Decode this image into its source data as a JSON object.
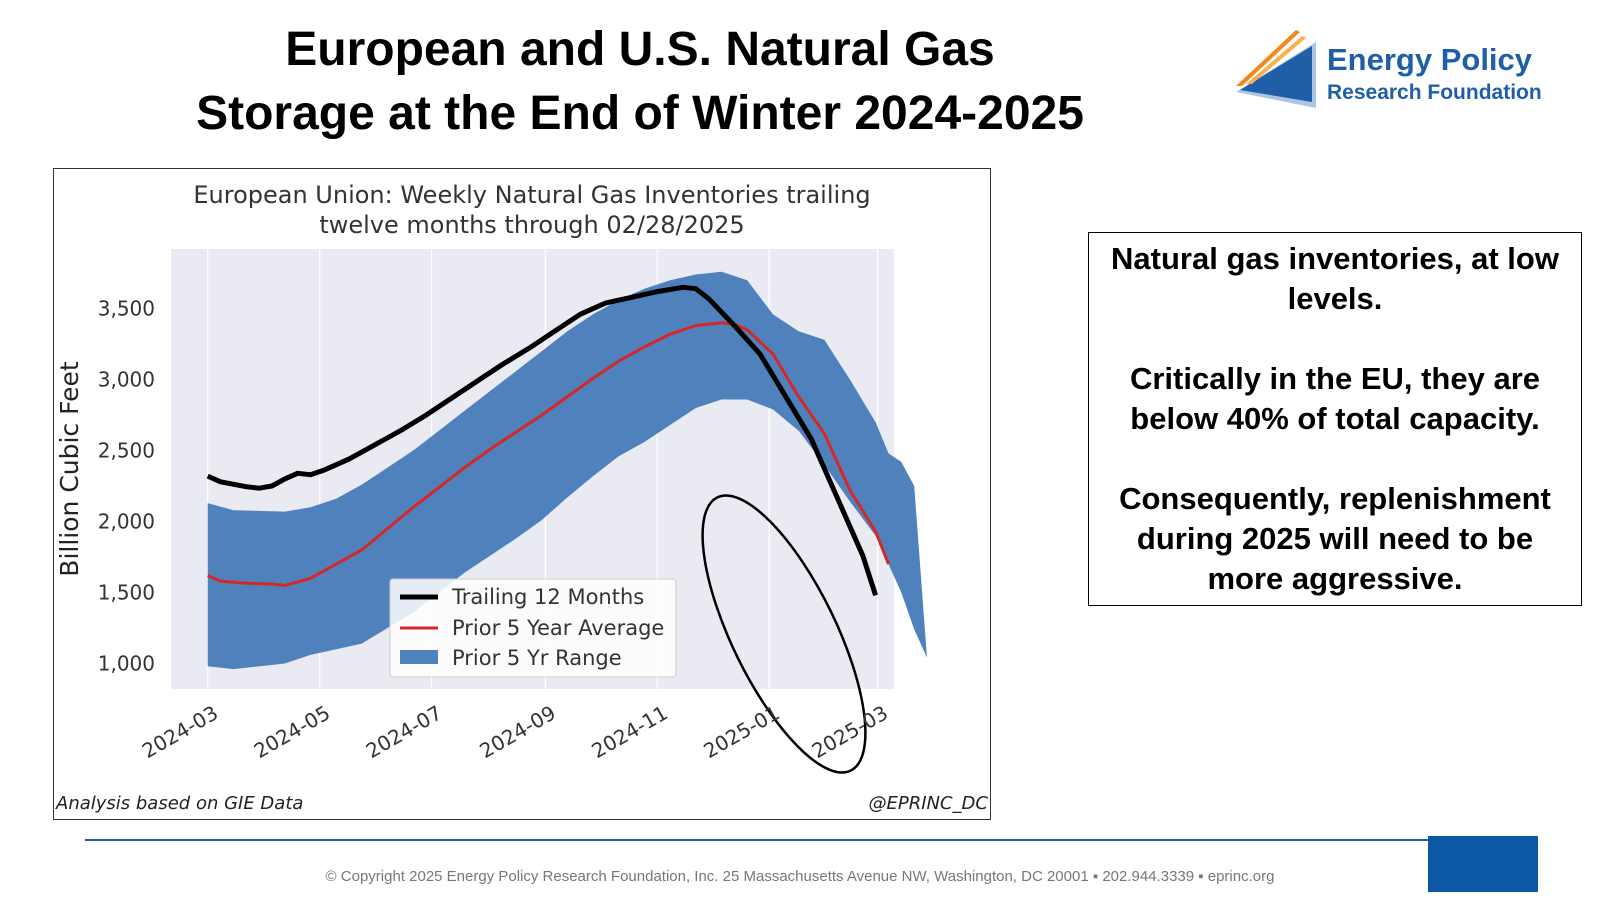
{
  "title": {
    "line1": "European and U.S. Natural Gas",
    "line2": "Storage at the End of Winter 2024-2025"
  },
  "logo": {
    "line1": "Energy Policy",
    "line2": "Research Foundation",
    "icon": "chevron-triangle-logo-icon",
    "colors": {
      "dark_blue": "#1f5fa8",
      "light_blue": "#a9c6e4",
      "orange": "#f08a1c"
    }
  },
  "chart_data": {
    "type": "line",
    "title": "European Union: Weekly Natural Gas Inventories trailing twelve months through 02/28/2025",
    "title_lines": [
      "European Union: Weekly Natural Gas Inventories trailing",
      "twelve months through 02/28/2025"
    ],
    "xlabel": "",
    "ylabel": "Billion Cubic Feet",
    "x_ticks": [
      "2024-03",
      "2024-05",
      "2024-07",
      "2024-09",
      "2024-11",
      "2025-01",
      "2025-03"
    ],
    "y_ticks": [
      1000,
      1500,
      2000,
      2500,
      3000,
      3500
    ],
    "y_tick_labels": [
      "1,000",
      "1,500",
      "2,000",
      "2,500",
      "3,000",
      "3,500"
    ],
    "xlim": [
      "2024-02-10",
      "2025-03-10"
    ],
    "ylim": [
      820,
      3920
    ],
    "grid": false,
    "legend_position": "lower-center",
    "background": "#eaeaf2",
    "series": [
      {
        "name": "Trailing 12 Months",
        "color": "#000000",
        "points": [
          [
            "2024-03-01",
            2320
          ],
          [
            "2024-03-08",
            2280
          ],
          [
            "2024-03-22",
            2245
          ],
          [
            "2024-03-29",
            2235
          ],
          [
            "2024-04-05",
            2250
          ],
          [
            "2024-04-12",
            2300
          ],
          [
            "2024-04-19",
            2340
          ],
          [
            "2024-04-26",
            2330
          ],
          [
            "2024-05-03",
            2360
          ],
          [
            "2024-05-17",
            2440
          ],
          [
            "2024-05-31",
            2540
          ],
          [
            "2024-06-14",
            2640
          ],
          [
            "2024-06-28",
            2750
          ],
          [
            "2024-07-12",
            2870
          ],
          [
            "2024-07-26",
            2990
          ],
          [
            "2024-08-09",
            3110
          ],
          [
            "2024-08-23",
            3220
          ],
          [
            "2024-09-06",
            3340
          ],
          [
            "2024-09-20",
            3460
          ],
          [
            "2024-10-04",
            3540
          ],
          [
            "2024-10-18",
            3580
          ],
          [
            "2024-11-01",
            3620
          ],
          [
            "2024-11-15",
            3650
          ],
          [
            "2024-11-22",
            3640
          ],
          [
            "2024-11-29",
            3570
          ],
          [
            "2024-12-13",
            3380
          ],
          [
            "2024-12-27",
            3180
          ],
          [
            "2025-01-10",
            2880
          ],
          [
            "2025-01-24",
            2580
          ],
          [
            "2025-02-07",
            2170
          ],
          [
            "2025-02-21",
            1760
          ],
          [
            "2025-02-28",
            1480
          ]
        ]
      },
      {
        "name": "Prior 5 Year Average",
        "color": "#d62728",
        "points": [
          [
            "2024-03-01",
            1620
          ],
          [
            "2024-03-08",
            1580
          ],
          [
            "2024-03-22",
            1565
          ],
          [
            "2024-04-05",
            1560
          ],
          [
            "2024-04-12",
            1550
          ],
          [
            "2024-04-26",
            1600
          ],
          [
            "2024-05-10",
            1700
          ],
          [
            "2024-05-24",
            1800
          ],
          [
            "2024-06-07",
            1950
          ],
          [
            "2024-06-21",
            2100
          ],
          [
            "2024-07-05",
            2240
          ],
          [
            "2024-07-19",
            2380
          ],
          [
            "2024-08-02",
            2510
          ],
          [
            "2024-08-16",
            2630
          ],
          [
            "2024-08-30",
            2750
          ],
          [
            "2024-09-13",
            2880
          ],
          [
            "2024-09-27",
            3010
          ],
          [
            "2024-10-11",
            3130
          ],
          [
            "2024-10-25",
            3230
          ],
          [
            "2024-11-08",
            3320
          ],
          [
            "2024-11-22",
            3380
          ],
          [
            "2024-12-06",
            3400
          ],
          [
            "2024-12-13",
            3390
          ],
          [
            "2024-12-20",
            3350
          ],
          [
            "2025-01-03",
            3180
          ],
          [
            "2025-01-17",
            2880
          ],
          [
            "2025-01-31",
            2620
          ],
          [
            "2025-02-14",
            2220
          ],
          [
            "2025-02-28",
            1930
          ],
          [
            "2025-03-07",
            1700
          ]
        ]
      }
    ],
    "range": {
      "name": "Prior 5 Yr Range",
      "color": "#4f81bd",
      "upper": [
        [
          "2024-03-01",
          2130
        ],
        [
          "2024-03-15",
          2080
        ],
        [
          "2024-04-12",
          2070
        ],
        [
          "2024-04-26",
          2100
        ],
        [
          "2024-05-10",
          2160
        ],
        [
          "2024-05-24",
          2260
        ],
        [
          "2024-06-07",
          2380
        ],
        [
          "2024-06-21",
          2500
        ],
        [
          "2024-07-05",
          2640
        ],
        [
          "2024-07-19",
          2780
        ],
        [
          "2024-08-02",
          2920
        ],
        [
          "2024-08-16",
          3060
        ],
        [
          "2024-08-30",
          3200
        ],
        [
          "2024-09-13",
          3340
        ],
        [
          "2024-09-27",
          3460
        ],
        [
          "2024-10-11",
          3560
        ],
        [
          "2024-10-25",
          3640
        ],
        [
          "2024-11-08",
          3700
        ],
        [
          "2024-11-22",
          3740
        ],
        [
          "2024-12-06",
          3760
        ],
        [
          "2024-12-20",
          3700
        ],
        [
          "2025-01-03",
          3460
        ],
        [
          "2025-01-17",
          3340
        ],
        [
          "2025-01-31",
          3280
        ],
        [
          "2025-02-14",
          3000
        ],
        [
          "2025-02-28",
          2700
        ],
        [
          "2025-03-07",
          2480
        ],
        [
          "2025-03-14",
          2420
        ],
        [
          "2025-03-21",
          2250
        ]
      ],
      "lower": [
        [
          "2024-03-01",
          980
        ],
        [
          "2024-03-15",
          960
        ],
        [
          "2024-04-12",
          1000
        ],
        [
          "2024-04-26",
          1060
        ],
        [
          "2024-05-10",
          1100
        ],
        [
          "2024-05-24",
          1140
        ],
        [
          "2024-06-07",
          1250
        ],
        [
          "2024-06-21",
          1360
        ],
        [
          "2024-07-05",
          1500
        ],
        [
          "2024-07-19",
          1640
        ],
        [
          "2024-08-02",
          1760
        ],
        [
          "2024-08-16",
          1880
        ],
        [
          "2024-08-30",
          2010
        ],
        [
          "2024-09-13",
          2170
        ],
        [
          "2024-09-27",
          2320
        ],
        [
          "2024-10-11",
          2460
        ],
        [
          "2024-10-25",
          2560
        ],
        [
          "2024-11-08",
          2680
        ],
        [
          "2024-11-22",
          2800
        ],
        [
          "2024-12-06",
          2860
        ],
        [
          "2024-12-20",
          2860
        ],
        [
          "2025-01-03",
          2790
        ],
        [
          "2025-01-17",
          2640
        ],
        [
          "2025-01-31",
          2400
        ],
        [
          "2025-02-14",
          2140
        ],
        [
          "2025-02-28",
          1900
        ],
        [
          "2025-03-07",
          1700
        ],
        [
          "2025-03-14",
          1500
        ],
        [
          "2025-03-21",
          1240
        ],
        [
          "2025-03-28",
          1040
        ]
      ]
    },
    "annotation": {
      "type": "ellipse",
      "color": "#000000",
      "note": "circles end-of-winter drawdown"
    }
  },
  "footnotes": {
    "left": "Analysis based on GIE Data",
    "right": "@EPRINC_DC"
  },
  "callout": {
    "p1": "Natural gas inventories, at low levels.",
    "p2": "Critically in the EU, they are below 40% of total capacity.",
    "p3": "Consequently, replenishment during 2025 will need to be more aggressive."
  },
  "footer": {
    "text": "© Copyright 2025 Energy Policy Research Foundation, Inc. 25 Massachusetts Avenue NW, Washington, DC 20001 ▪ 202.944.3339 ▪ eprinc.org",
    "accent_color": "#0c58a6"
  }
}
